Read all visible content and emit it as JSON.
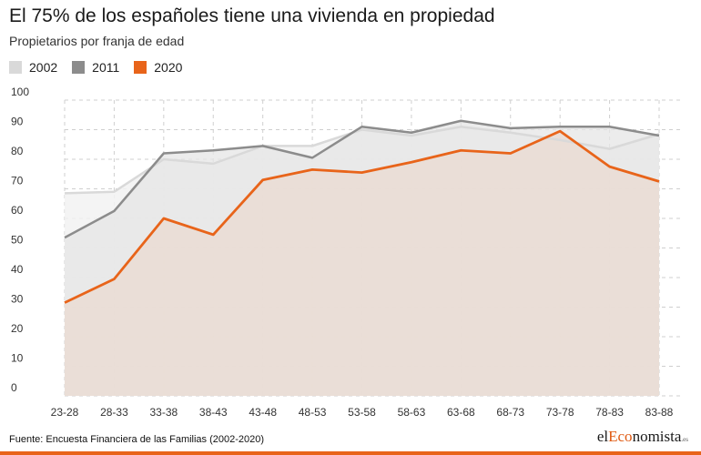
{
  "title": "El 75% de los españoles tiene una vivienda en propiedad",
  "subtitle": "Propietarios por franja de edad",
  "footer": {
    "source": "Fuente: Encuesta Financiera de las Familias (2002-2020)",
    "brand_prefix": "el",
    "brand_accent": "Eco",
    "brand_suffix": "nomista",
    "brand_tld": ".es"
  },
  "colors": {
    "s2002": "#d9d9d9",
    "s2011": "#8c8c8c",
    "s2020": "#e8641a",
    "fill2020": "#ead9d0",
    "fill2011": "#e6e6e6",
    "fill2002": "#f2f2f2",
    "grid": "#cfcfcf"
  },
  "chart_data": {
    "type": "area",
    "title": "El 75% de los españoles tiene una vivienda en propiedad",
    "subtitle": "Propietarios por franja de edad",
    "categories": [
      "23-28",
      "28-33",
      "33-38",
      "38-43",
      "43-48",
      "48-53",
      "53-58",
      "58-63",
      "63-68",
      "68-73",
      "73-78",
      "78-83",
      "83-88"
    ],
    "series": [
      {
        "name": "2002",
        "values": [
          68.5,
          69,
          80,
          78.5,
          84.5,
          84.5,
          90,
          88,
          91,
          89,
          86.5,
          83.5,
          88.5
        ]
      },
      {
        "name": "2011",
        "values": [
          53.5,
          62.5,
          82,
          83,
          84.5,
          80.5,
          91,
          89,
          93,
          90.5,
          91,
          91,
          88
        ]
      },
      {
        "name": "2020",
        "values": [
          31.5,
          39.5,
          60,
          54.5,
          73,
          76.5,
          75.5,
          79,
          83,
          82,
          89.5,
          77.5,
          72.5
        ]
      }
    ],
    "ylim": [
      0,
      100
    ],
    "yticks": [
      0,
      10,
      20,
      30,
      40,
      50,
      60,
      70,
      80,
      90,
      100
    ],
    "grid": "dashed",
    "legend": "top-left"
  }
}
